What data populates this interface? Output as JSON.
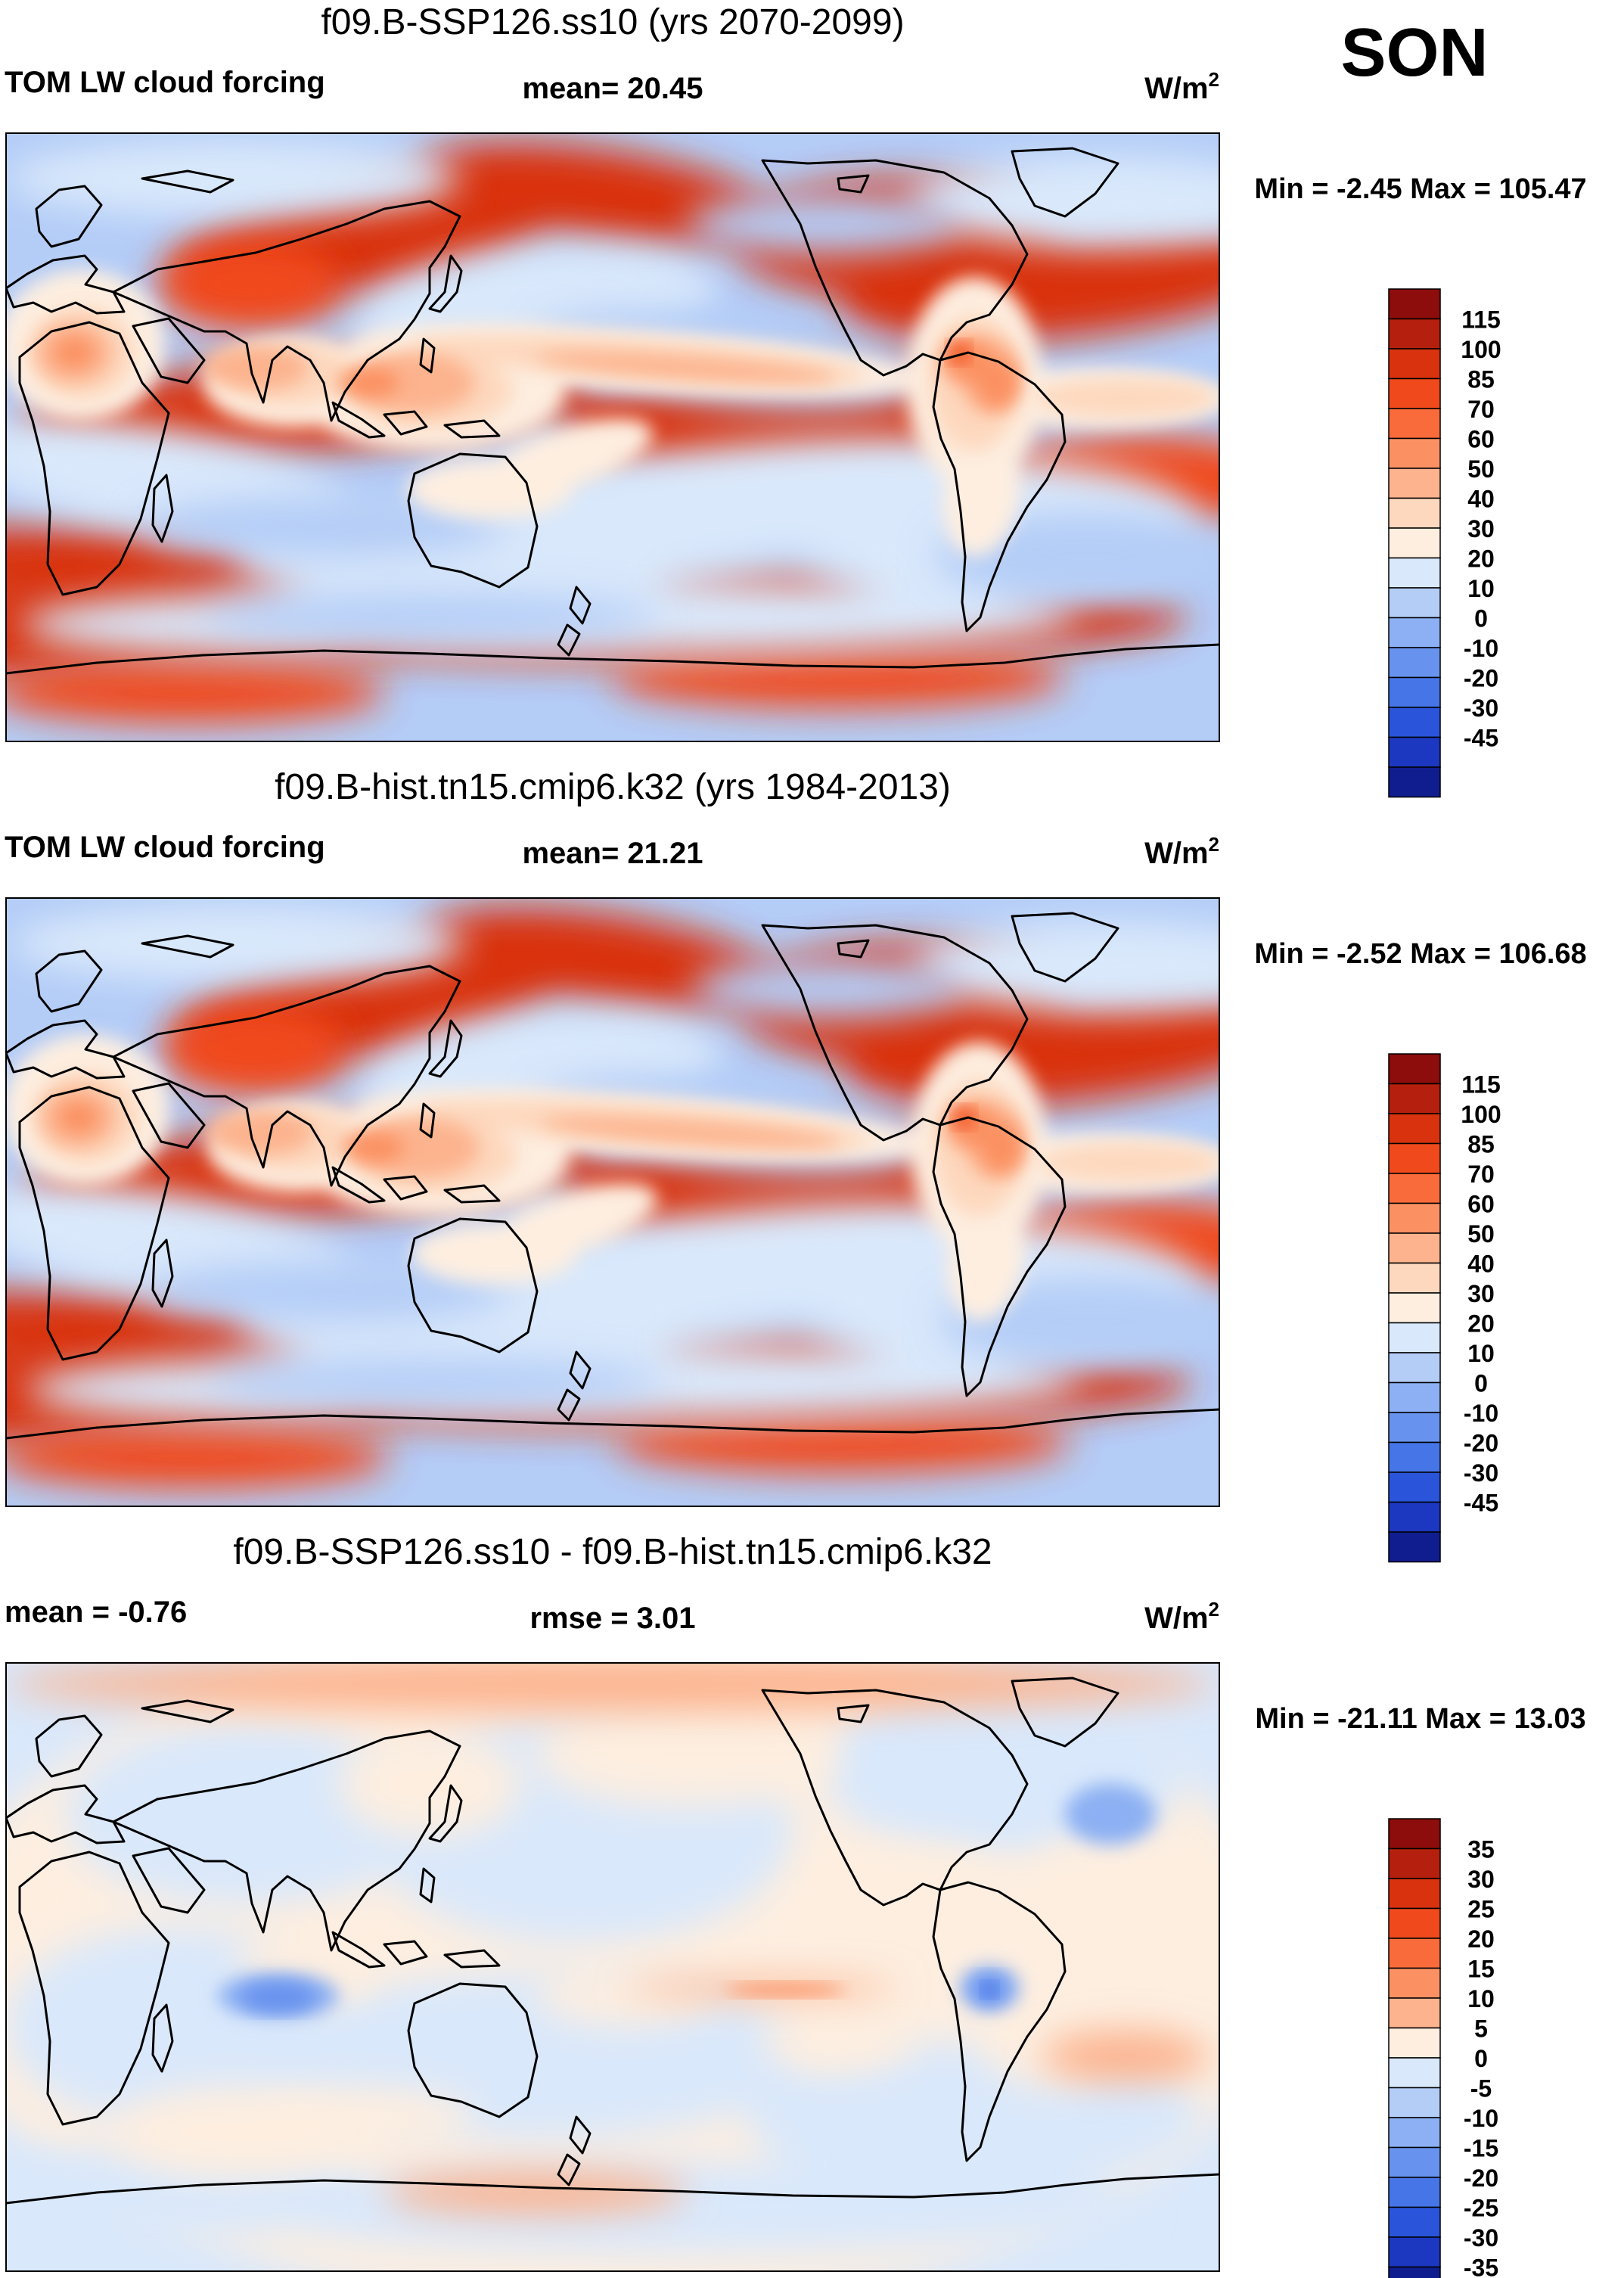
{
  "season": "SON",
  "units_label": "W/m",
  "units_exp": "2",
  "chart_data": [
    {
      "type": "heatmap",
      "title": "f09.B-SSP126.ss10 (yrs 2070-2099)",
      "left_label": "TOM LW cloud forcing",
      "stat_label": "mean=  20.45",
      "minmax_label": "Min =  -2.45 Max = 105.47",
      "variable": "TOM LW cloud forcing",
      "mean": 20.45,
      "min": -2.45,
      "max": 105.47,
      "units": "W/m2",
      "colorbar": {
        "levels": [
          "115",
          "100",
          "85",
          "70",
          "60",
          "50",
          "40",
          "30",
          "20",
          "10",
          "0",
          "-10",
          "-20",
          "-30",
          "-45"
        ],
        "colors": [
          "#8c0d0b",
          "#b5200e",
          "#d9320f",
          "#f04a1c",
          "#f96b3a",
          "#fb9162",
          "#fcb38e",
          "#fdd8be",
          "#fdeee0",
          "#d9e8fb",
          "#b4cdf7",
          "#8cb0f3",
          "#6792ee",
          "#4675e8",
          "#2a55da",
          "#1c38c0",
          "#0f1d8f"
        ]
      }
    },
    {
      "type": "heatmap",
      "title": "f09.B-hist.tn15.cmip6.k32 (yrs 1984-2013)",
      "left_label": "TOM LW cloud forcing",
      "stat_label": "mean=  21.21",
      "minmax_label": "Min =  -2.52 Max = 106.68",
      "variable": "TOM LW cloud forcing",
      "mean": 21.21,
      "min": -2.52,
      "max": 106.68,
      "units": "W/m2",
      "colorbar": {
        "levels": [
          "115",
          "100",
          "85",
          "70",
          "60",
          "50",
          "40",
          "30",
          "20",
          "10",
          "0",
          "-10",
          "-20",
          "-30",
          "-45"
        ],
        "colors": [
          "#8c0d0b",
          "#b5200e",
          "#d9320f",
          "#f04a1c",
          "#f96b3a",
          "#fb9162",
          "#fcb38e",
          "#fdd8be",
          "#fdeee0",
          "#d9e8fb",
          "#b4cdf7",
          "#8cb0f3",
          "#6792ee",
          "#4675e8",
          "#2a55da",
          "#1c38c0",
          "#0f1d8f"
        ]
      }
    },
    {
      "type": "heatmap",
      "title": "f09.B-SSP126.ss10 - f09.B-hist.tn15.cmip6.k32",
      "left_label": "mean =  -0.76",
      "stat_label": "rmse =   3.01",
      "minmax_label": "Min = -21.11 Max =  13.03",
      "mean": -0.76,
      "rmse": 3.01,
      "min": -21.11,
      "max": 13.03,
      "units": "W/m2",
      "colorbar": {
        "levels": [
          "35",
          "30",
          "25",
          "20",
          "15",
          "10",
          "5",
          "0",
          "-5",
          "-10",
          "-15",
          "-20",
          "-25",
          "-30",
          "-35"
        ],
        "colors": [
          "#8c0d0b",
          "#b5200e",
          "#d9320f",
          "#f04a1c",
          "#f96b3a",
          "#fb9162",
          "#fcb38e",
          "#fdeee0",
          "#d9e8fb",
          "#b4cdf7",
          "#8cb0f3",
          "#6792ee",
          "#4675e8",
          "#2a55da",
          "#1c38c0",
          "#0f1d8f"
        ]
      }
    }
  ]
}
